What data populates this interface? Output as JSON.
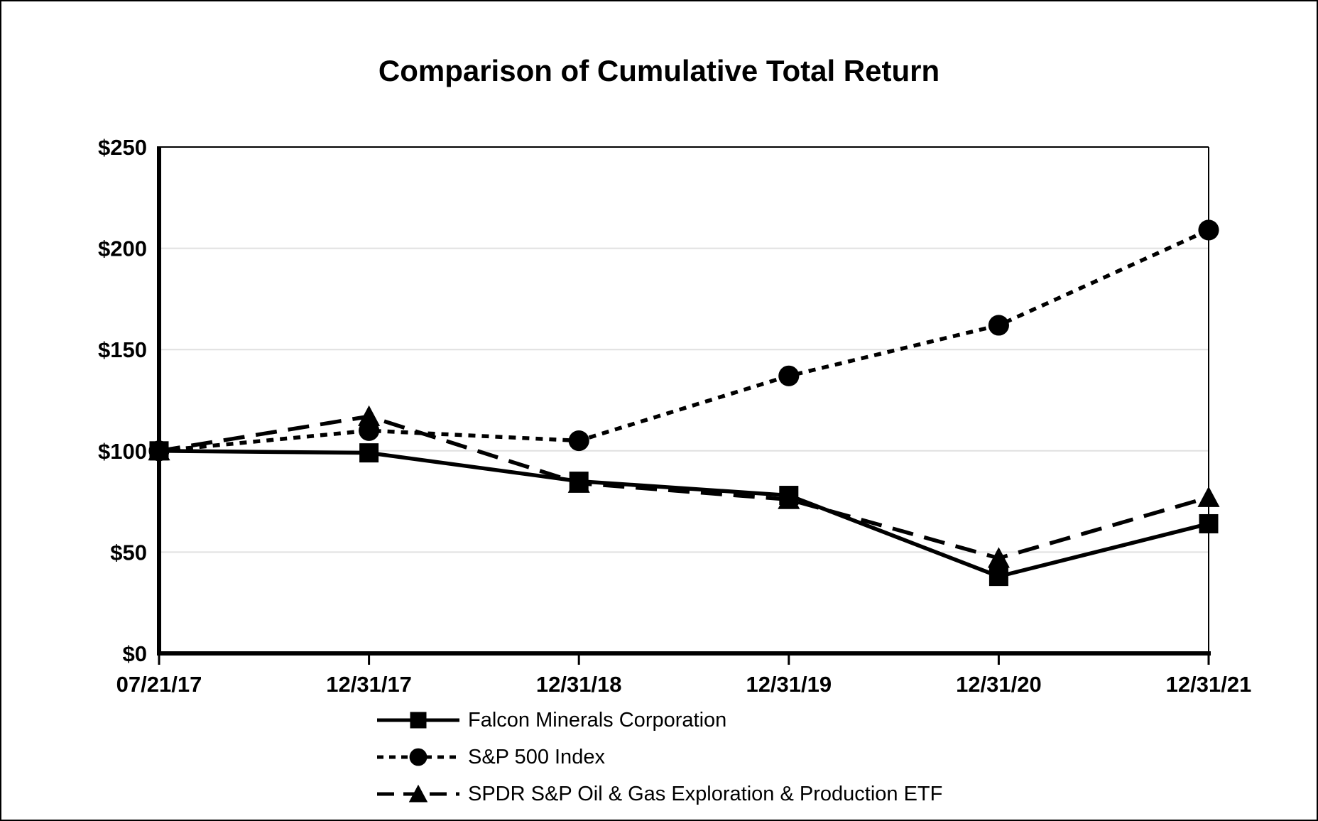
{
  "window": {
    "background": "#ffffff",
    "border_color": "#000000",
    "foreground": "#000000"
  },
  "chart_data": {
    "type": "line",
    "title": "Comparison of Cumulative Total Return",
    "categories": [
      "07/21/17",
      "12/31/17",
      "12/31/18",
      "12/31/19",
      "12/31/20",
      "12/31/21"
    ],
    "series": [
      {
        "name": "Falcon Minerals Corporation",
        "values": [
          100,
          99,
          85,
          78,
          38,
          64
        ],
        "line_style": "solid",
        "marker": "square",
        "color": "#000000"
      },
      {
        "name": "S&P 500 Index",
        "values": [
          100,
          110,
          105,
          137,
          162,
          209
        ],
        "line_style": "dotted",
        "marker": "circle",
        "color": "#000000"
      },
      {
        "name": "SPDR S&P Oil & Gas Exploration & Production ETF",
        "values": [
          100,
          117,
          84,
          76,
          47,
          77
        ],
        "line_style": "long-dash",
        "marker": "triangle",
        "color": "#000000"
      }
    ],
    "y_axis": {
      "min": 0,
      "max": 250,
      "step": 50,
      "tick_labels": [
        "$0",
        "$50",
        "$100",
        "$150",
        "$200",
        "$250"
      ],
      "gridlines": true,
      "gridline_color": "#e0e0e0"
    },
    "x_axis": {
      "tick_labels": [
        "07/21/17",
        "12/31/17",
        "12/31/18",
        "12/31/19",
        "12/31/20",
        "12/31/21"
      ]
    },
    "legend_position": "bottom-left",
    "grid": "horizontal-only"
  }
}
